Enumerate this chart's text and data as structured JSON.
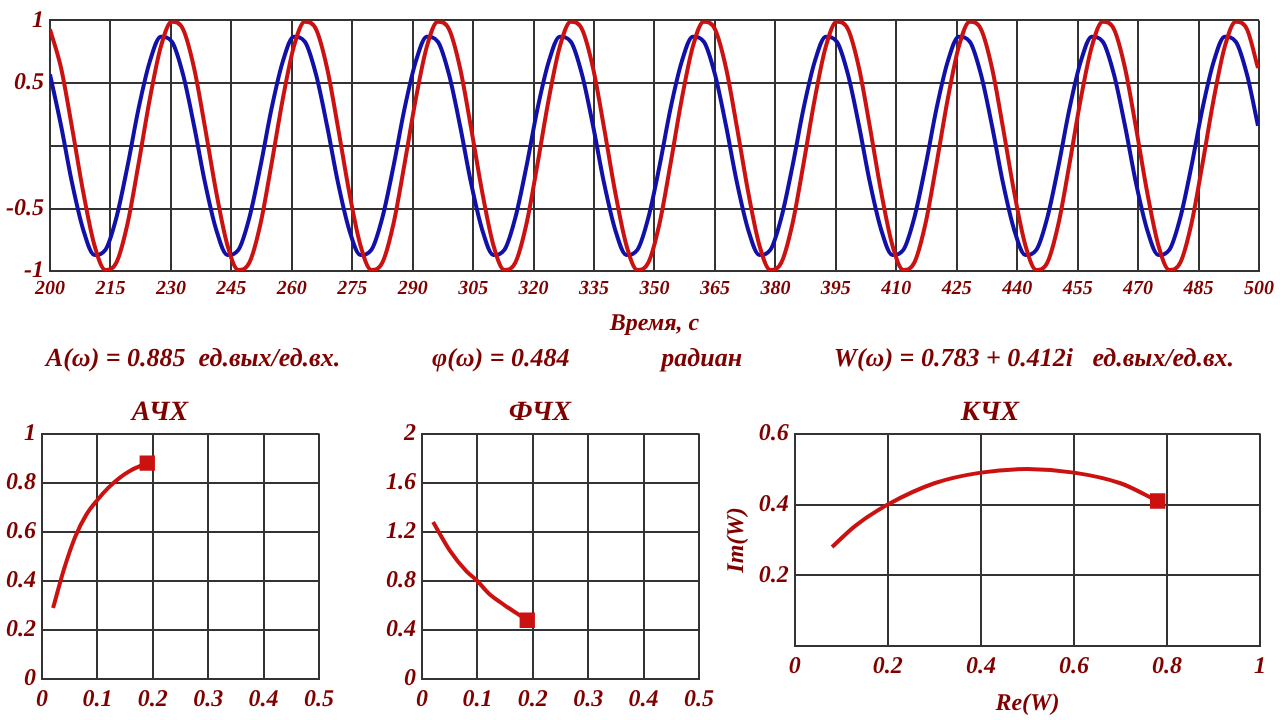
{
  "chart_data": [
    {
      "type": "line",
      "xlabel": "Время, с",
      "xlim": [
        200,
        500
      ],
      "ylim": [
        -1,
        1
      ],
      "grid": true,
      "xticks": [
        200,
        215,
        230,
        245,
        260,
        275,
        290,
        305,
        320,
        335,
        350,
        365,
        380,
        395,
        410,
        425,
        440,
        455,
        470,
        485,
        500
      ],
      "yticks": [
        -1,
        -0.5,
        {
          "value": 0,
          "label": null
        },
        0.5,
        1
      ],
      "x": [
        200,
        202.75,
        205.5,
        208.25,
        211,
        213.75,
        216.5,
        219.25,
        222,
        224.75,
        227.5,
        230.25,
        233,
        235.75,
        238.5,
        241.25,
        244,
        246.75,
        249.5,
        252.25,
        255,
        257.75,
        260.5,
        263.25,
        266,
        268.75,
        271.5,
        274.25,
        277,
        279.75,
        282.5,
        285.25,
        288,
        290.75,
        293.5,
        296.25,
        299,
        301.75,
        304.5,
        307.25,
        310,
        312.75,
        315.5,
        318.25,
        321,
        323.75,
        326.5,
        329.25,
        332,
        334.75,
        337.5,
        340.25,
        343,
        345.75,
        348.5,
        351.25,
        354,
        356.75,
        359.5,
        362.25,
        365,
        367.75,
        370.5,
        373.25,
        376,
        378.75,
        381.5,
        384.25,
        387,
        389.75,
        392.5,
        395.25,
        398,
        400.75,
        403.5,
        406.25,
        409,
        411.75,
        414.5,
        417.25,
        420,
        422.75,
        425.5,
        428.25,
        431,
        433.75,
        436.5,
        439.25,
        442,
        444.75,
        447.5,
        450.25,
        453,
        455.75,
        458.5,
        461.25,
        464,
        466.75,
        469.5,
        472.25,
        475,
        477.75,
        480.5,
        483.25,
        486,
        488.75,
        491.5,
        494.25,
        497,
        499.75
      ],
      "series": [
        {
          "color": "#cc1111",
          "values": [
            0.93,
            0.62,
            0.14,
            -0.37,
            -0.79,
            -0.99,
            -0.93,
            -0.62,
            -0.14,
            0.37,
            0.79,
            0.99,
            0.93,
            0.62,
            0.14,
            -0.37,
            -0.79,
            -0.99,
            -0.93,
            -0.62,
            -0.14,
            0.37,
            0.79,
            0.99,
            0.93,
            0.62,
            0.14,
            -0.37,
            -0.79,
            -0.99,
            -0.93,
            -0.62,
            -0.14,
            0.37,
            0.79,
            0.99,
            0.93,
            0.62,
            0.14,
            -0.37,
            -0.79,
            -0.99,
            -0.93,
            -0.62,
            -0.14,
            0.37,
            0.79,
            0.99,
            0.93,
            0.62,
            0.14,
            -0.37,
            -0.79,
            -0.99,
            -0.93,
            -0.62,
            -0.14,
            0.37,
            0.79,
            0.99,
            0.93,
            0.62,
            0.14,
            -0.37,
            -0.79,
            -0.99,
            -0.93,
            -0.62,
            -0.14,
            0.37,
            0.79,
            0.99,
            0.93,
            0.62,
            0.14,
            -0.37,
            -0.79,
            -0.99,
            -0.93,
            -0.62,
            -0.14,
            0.37,
            0.79,
            0.99,
            0.93,
            0.62,
            0.14,
            -0.37,
            -0.79,
            -0.99,
            -0.93,
            -0.62,
            -0.14,
            0.37,
            0.79,
            0.99,
            0.93,
            0.62,
            0.14,
            -0.37,
            -0.79,
            -0.99,
            -0.93,
            -0.62,
            -0.14,
            0.37,
            0.79,
            0.99,
            0.93,
            0.62
          ]
        },
        {
          "color": "#1111aa",
          "values": [
            0.57,
            0.16,
            -0.3,
            -0.67,
            -0.87,
            -0.83,
            -0.57,
            -0.16,
            0.3,
            0.67,
            0.87,
            0.83,
            0.57,
            0.16,
            -0.3,
            -0.67,
            -0.87,
            -0.83,
            -0.57,
            -0.16,
            0.3,
            0.67,
            0.87,
            0.83,
            0.57,
            0.16,
            -0.3,
            -0.67,
            -0.87,
            -0.83,
            -0.57,
            -0.16,
            0.3,
            0.67,
            0.87,
            0.83,
            0.57,
            0.16,
            -0.3,
            -0.67,
            -0.87,
            -0.83,
            -0.57,
            -0.16,
            0.3,
            0.67,
            0.87,
            0.83,
            0.57,
            0.16,
            -0.3,
            -0.67,
            -0.87,
            -0.83,
            -0.57,
            -0.16,
            0.3,
            0.67,
            0.87,
            0.83,
            0.57,
            0.16,
            -0.3,
            -0.67,
            -0.87,
            -0.83,
            -0.57,
            -0.16,
            0.3,
            0.67,
            0.87,
            0.83,
            0.57,
            0.16,
            -0.3,
            -0.67,
            -0.87,
            -0.83,
            -0.57,
            -0.16,
            0.3,
            0.67,
            0.87,
            0.83,
            0.57,
            0.16,
            -0.3,
            -0.67,
            -0.87,
            -0.83,
            -0.57,
            -0.16,
            0.3,
            0.67,
            0.87,
            0.83,
            0.57,
            0.16,
            -0.3,
            -0.67,
            -0.87,
            -0.83,
            -0.57,
            -0.16,
            0.3,
            0.67,
            0.87,
            0.83,
            0.57,
            0.16
          ]
        }
      ]
    },
    {
      "type": "other",
      "annotations": [
        "A(ω) = 0.885  ед.вых/ед.вх.",
        "φ(ω) = 0.484",
        "радиан",
        "W(ω) = 0.783 + 0.412i   ед.вых/ед.вх."
      ]
    },
    {
      "type": "line",
      "title": "АЧХ",
      "xlim": [
        0,
        0.5
      ],
      "ylim": [
        0,
        1
      ],
      "grid": true,
      "xticks": [
        0,
        0.1,
        0.2,
        0.3,
        0.4,
        0.5
      ],
      "yticks": [
        0,
        0.2,
        0.4,
        0.6,
        0.8,
        1
      ],
      "series": [
        {
          "color": "#cc1111",
          "x": [
            0.02,
            0.04,
            0.06,
            0.08,
            0.1,
            0.12,
            0.14,
            0.16,
            0.19
          ],
          "values": [
            0.29,
            0.45,
            0.58,
            0.67,
            0.73,
            0.78,
            0.82,
            0.85,
            0.88
          ]
        },
        {
          "type": "scatter",
          "marker": "square",
          "color": "#cc1111",
          "x": [
            0.19
          ],
          "values": [
            0.88
          ]
        }
      ]
    },
    {
      "type": "line",
      "title": "ФЧХ",
      "xlim": [
        0,
        0.5
      ],
      "ylim": [
        0,
        2
      ],
      "grid": true,
      "xticks": [
        0,
        0.1,
        0.2,
        0.3,
        0.4,
        0.5
      ],
      "yticks": [
        0,
        0.4,
        0.8,
        1.2,
        1.6,
        2
      ],
      "series": [
        {
          "color": "#cc1111",
          "x": [
            0.02,
            0.05,
            0.08,
            0.1,
            0.12,
            0.15,
            0.19
          ],
          "values": [
            1.28,
            1.05,
            0.88,
            0.8,
            0.7,
            0.6,
            0.48
          ]
        },
        {
          "type": "scatter",
          "marker": "square",
          "color": "#cc1111",
          "x": [
            0.19
          ],
          "values": [
            0.48
          ]
        }
      ]
    },
    {
      "type": "line",
      "title": "КЧХ",
      "xlabel": "Re(W)",
      "ylabel": "Im(W)",
      "xlim": [
        0,
        1
      ],
      "ylim": [
        0,
        0.6
      ],
      "grid": true,
      "xticks": [
        0,
        0.2,
        0.4,
        0.6,
        0.8,
        1
      ],
      "yticks": [
        {
          "value": 0,
          "label": null
        },
        0.2,
        0.4,
        0.6
      ],
      "series": [
        {
          "color": "#cc1111",
          "x": [
            0.08,
            0.13,
            0.2,
            0.3,
            0.4,
            0.5,
            0.6,
            0.7,
            0.78
          ],
          "values": [
            0.28,
            0.34,
            0.4,
            0.46,
            0.49,
            0.5,
            0.49,
            0.46,
            0.41
          ]
        },
        {
          "type": "scatter",
          "marker": "square",
          "color": "#cc1111",
          "x": [
            0.78
          ],
          "values": [
            0.41
          ]
        }
      ]
    }
  ]
}
